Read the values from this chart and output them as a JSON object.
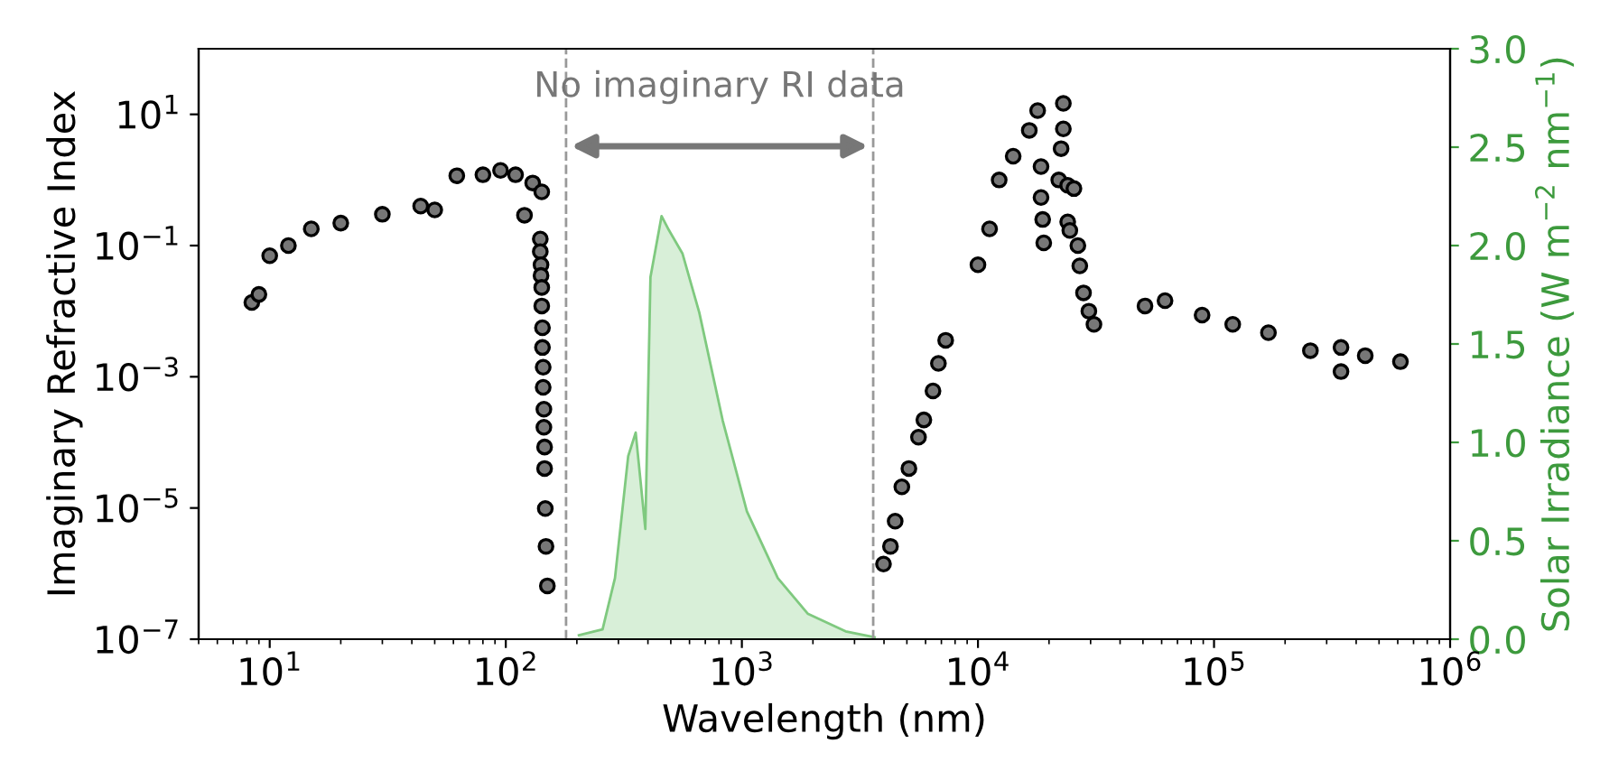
{
  "chart_data": {
    "type": "scatter",
    "xlabel": "Wavelength (nm)",
    "ylabel": "Imaginary Refractive Index",
    "y2label": "Solar Irradiance (W m$^{−2}$ nm$^{−1}$)",
    "log": "xy",
    "xlim": [
      5,
      1000000
    ],
    "xticks": [
      {
        "value": 10,
        "label": "10$^{1}$"
      },
      {
        "value": 100,
        "label": "10$^{2}$"
      },
      {
        "value": 1000,
        "label": "10$^{3}$"
      },
      {
        "value": 10000,
        "label": "10$^{4}$"
      },
      {
        "value": 100000,
        "label": "10$^{5}$"
      },
      {
        "value": 1000000,
        "label": "10$^{6}$"
      }
    ],
    "ylim": [
      1e-07,
      100
    ],
    "yticks": [
      {
        "value": 1e-07,
        "label": "10$^{−7}$"
      },
      {
        "value": 1e-05,
        "label": "10$^{−5}$"
      },
      {
        "value": 0.001,
        "label": "10$^{−3}$"
      },
      {
        "value": 0.1,
        "label": "10$^{−1}$"
      },
      {
        "value": 10,
        "label": "10$^{1}$"
      }
    ],
    "y2lim": [
      0,
      3.0
    ],
    "y2ticks": [
      {
        "value": 0,
        "label": "0.0"
      },
      {
        "value": 0.5,
        "label": "0.5"
      },
      {
        "value": 1.0,
        "label": "1.0"
      },
      {
        "value": 1.5,
        "label": "1.5"
      },
      {
        "value": 2.0,
        "label": "2.0"
      },
      {
        "value": 2.5,
        "label": "2.5"
      },
      {
        "value": 3.0,
        "label": "3.0"
      }
    ],
    "grid": false,
    "legend": false,
    "marker": "circle",
    "ref_lines": [
      {
        "axis": "x",
        "value": 180,
        "color": "#999999",
        "line_style": "dashed"
      },
      {
        "axis": "x",
        "value": 3600,
        "color": "#999999",
        "line_style": "dashed"
      }
    ],
    "annotations": [
      "No imaginary RI data"
    ],
    "series": [
      {
        "type": "area",
        "axis": "y2",
        "color": "#7fc97f",
        "marker": "none",
        "x": [
          204,
          257,
          290,
          330,
          355,
          390,
          410,
          457,
          490,
          560,
          660,
          830,
          1050,
          1420,
          1900,
          2750,
          3650
        ],
        "values": [
          0.02,
          0.05,
          0.31,
          0.93,
          1.05,
          0.56,
          1.84,
          2.15,
          2.08,
          1.96,
          1.66,
          1.11,
          0.65,
          0.31,
          0.13,
          0.04,
          0.01
        ]
      },
      {
        "color": "#777777",
        "x": [
          8.4,
          9,
          10,
          12,
          15,
          20,
          30,
          43.6,
          50,
          62,
          80,
          95,
          110,
          130,
          142,
          120,
          140,
          140,
          141,
          141,
          142,
          142,
          143,
          143,
          144,
          144,
          145,
          145,
          146,
          146,
          147,
          148,
          150,
          3980,
          4260,
          4460,
          4760,
          5100,
          5600,
          5900,
          6450,
          6800,
          7300,
          10000,
          11200,
          12300,
          14100,
          16500,
          17900,
          18500,
          18500,
          18800,
          19000,
          23000,
          23000,
          22500,
          22000,
          24000,
          25500,
          24000,
          24500,
          26500,
          27000,
          28000,
          29500,
          31000,
          51000,
          62000,
          89000,
          120000,
          170000,
          256000,
          345000,
          345000,
          437000,
          616000
        ],
        "values": [
          0.0136,
          0.018,
          0.07,
          0.1,
          0.18,
          0.22,
          0.3,
          0.4,
          0.35,
          1.16,
          1.2,
          1.4,
          1.2,
          0.9,
          0.66,
          0.29,
          0.126,
          0.081,
          0.051,
          0.035,
          0.023,
          0.012,
          0.0056,
          0.0028,
          0.0014,
          0.00069,
          0.00032,
          0.00017,
          8.5e-05,
          4e-05,
          9.8e-06,
          2.6e-06,
          6.5e-07,
          1.4e-06,
          2.6e-06,
          6.3e-06,
          2.1e-05,
          4e-05,
          0.00012,
          0.00022,
          0.00061,
          0.0016,
          0.0036,
          0.051,
          0.18,
          1.0,
          2.3,
          5.7,
          11.4,
          1.6,
          0.54,
          0.25,
          0.11,
          14.7,
          6.0,
          3.0,
          1.0,
          0.83,
          0.74,
          0.23,
          0.17,
          0.1,
          0.049,
          0.019,
          0.01,
          0.0063,
          0.012,
          0.0145,
          0.0087,
          0.0063,
          0.0047,
          0.0025,
          0.0028,
          0.0012,
          0.0021,
          0.0017
        ]
      }
    ]
  }
}
